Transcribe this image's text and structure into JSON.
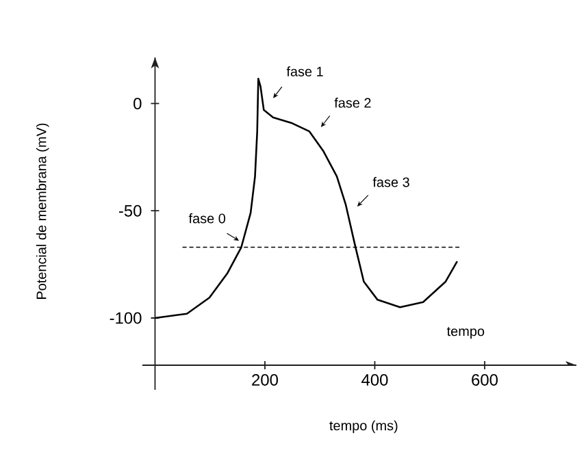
{
  "chart_data": {
    "type": "line",
    "xlabel": "tempo (ms)",
    "ylabel": "Potencial de membrana (mV)",
    "xlim": [
      -23,
      767
    ],
    "ylim": [
      -122,
      21.5
    ],
    "xticks": [
      200,
      400,
      600
    ],
    "yticks": [
      -100,
      -50,
      0
    ],
    "series": [
      {
        "color": "#000000",
        "line_style": "solid",
        "x": [
          0,
          58,
          99,
          132,
          157,
          174,
          182,
          186,
          188,
          192,
          198,
          215,
          248,
          281,
          306,
          331,
          347,
          364,
          380,
          405,
          446,
          488,
          529,
          550
        ],
        "values": [
          -100,
          -98,
          -90.5,
          -79,
          -67,
          -51,
          -34,
          -13,
          11.6,
          8,
          -3,
          -6.5,
          -9,
          -13,
          -22,
          -34,
          -47,
          -66,
          -83,
          -91.5,
          -95,
          -92.6,
          -83,
          -73.6
        ]
      },
      {
        "color": "#000000",
        "line_style": "dashed",
        "x": [
          50,
          558
        ],
        "values": [
          -67,
          -67
        ]
      }
    ],
    "annotations": [
      {
        "text": "fase 0",
        "x": 153,
        "y": -64
      },
      "fase 1",
      "fase 2",
      {
        "text": "fase 3",
        "x": 368,
        "y": -48
      },
      "tempo"
    ]
  }
}
